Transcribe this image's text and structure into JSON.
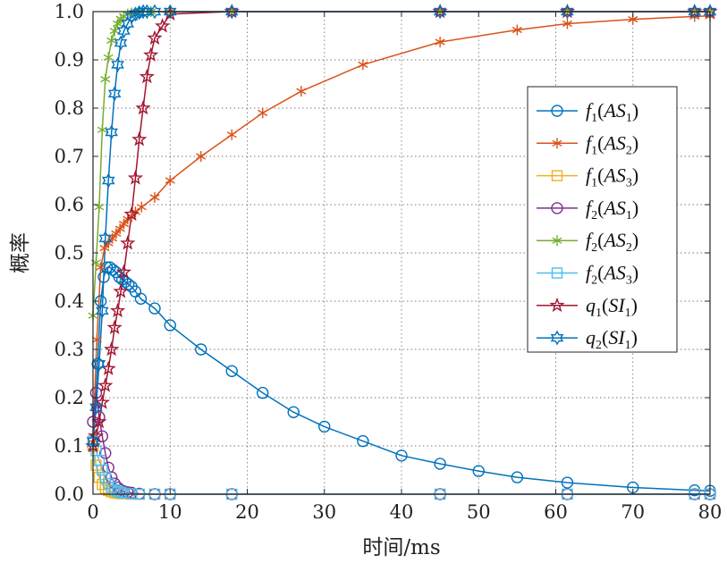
{
  "chart_data": {
    "type": "line",
    "xlabel": "时间/ms",
    "ylabel": "概率",
    "xlim": [
      0,
      80
    ],
    "ylim": [
      0,
      1.0
    ],
    "xticks": [
      "0",
      "10",
      "20",
      "30",
      "40",
      "50",
      "60",
      "70",
      "80"
    ],
    "yticks": [
      "0.0",
      "0.1",
      "0.2",
      "0.3",
      "0.4",
      "0.5",
      "0.6",
      "0.7",
      "0.8",
      "0.9",
      "1.0"
    ],
    "grid": true,
    "legend_position": "right",
    "series": [
      {
        "name": "f1(AS1)",
        "label": {
          "f": "f",
          "sub1": "1",
          "arg": "AS",
          "sub2": "1"
        },
        "color": "#0072bd",
        "marker": "circle",
        "x": [
          0,
          0.6,
          1.0,
          1.4,
          1.8,
          2.2,
          2.6,
          3.0,
          3.4,
          3.8,
          4.2,
          4.6,
          5.0,
          5.5,
          6.2,
          8,
          10,
          14,
          18,
          22,
          26,
          30,
          35,
          40,
          45,
          50,
          55,
          61.5,
          70,
          78,
          80
        ],
        "y": [
          0.1,
          0.27,
          0.4,
          0.45,
          0.47,
          0.47,
          0.465,
          0.46,
          0.45,
          0.445,
          0.44,
          0.435,
          0.43,
          0.42,
          0.405,
          0.385,
          0.35,
          0.3,
          0.255,
          0.21,
          0.17,
          0.14,
          0.11,
          0.08,
          0.063,
          0.048,
          0.035,
          0.024,
          0.014,
          0.008,
          0.007
        ]
      },
      {
        "name": "f1(AS2)",
        "label": {
          "f": "f",
          "sub1": "1",
          "arg": "AS",
          "sub2": "2"
        },
        "color": "#d95319",
        "marker": "asterisk",
        "x": [
          0,
          0.5,
          1.0,
          1.5,
          2.0,
          2.5,
          3.0,
          3.5,
          4.0,
          4.5,
          5.0,
          5.5,
          6.3,
          8,
          10,
          14,
          18,
          22,
          27,
          35,
          45,
          55,
          61.5,
          70,
          78,
          80
        ],
        "y": [
          0.12,
          0.32,
          0.47,
          0.51,
          0.52,
          0.53,
          0.54,
          0.55,
          0.56,
          0.57,
          0.575,
          0.585,
          0.595,
          0.615,
          0.65,
          0.7,
          0.745,
          0.79,
          0.835,
          0.89,
          0.937,
          0.962,
          0.975,
          0.984,
          0.99,
          0.991
        ]
      },
      {
        "name": "f1(AS3)",
        "label": {
          "f": "f",
          "sub1": "1",
          "arg": "AS",
          "sub2": "3"
        },
        "color": "#edb120",
        "marker": "square",
        "x": [
          0,
          0.4,
          0.8,
          1.2,
          1.6,
          2.0,
          2.4,
          2.8,
          3.2,
          3.6,
          4.0,
          5,
          6,
          8,
          10,
          18,
          45,
          61.5,
          78,
          80
        ],
        "y": [
          0.1,
          0.06,
          0.035,
          0.02,
          0.012,
          0.008,
          0.005,
          0.003,
          0.002,
          0.001,
          0.001,
          0.0,
          0.0,
          0.0,
          0.0,
          0.0,
          0.0,
          0.0,
          0.0,
          0.0
        ]
      },
      {
        "name": "f2(AS1)",
        "label": {
          "f": "f",
          "sub1": "2",
          "arg": "AS",
          "sub2": "1"
        },
        "color": "#7e2f8e",
        "marker": "circle",
        "x": [
          0,
          0.4,
          0.8,
          1.2,
          1.6,
          2.0,
          2.4,
          2.8,
          3.2,
          3.6,
          4.0,
          4.5,
          5,
          6,
          8,
          10,
          18,
          45,
          61.5,
          78,
          80
        ],
        "y": [
          0.15,
          0.21,
          0.16,
          0.12,
          0.085,
          0.055,
          0.035,
          0.022,
          0.014,
          0.009,
          0.006,
          0.004,
          0.003,
          0.001,
          0.0,
          0.0,
          0.0,
          0.0,
          0.0,
          0.0,
          0.0
        ]
      },
      {
        "name": "f2(AS2)",
        "label": {
          "f": "f",
          "sub1": "2",
          "arg": "AS",
          "sub2": "2"
        },
        "color": "#77ac30",
        "marker": "asterisk",
        "x": [
          0,
          0.4,
          0.8,
          1.2,
          1.6,
          2.0,
          2.4,
          2.8,
          3.2,
          3.6,
          4.0,
          4.5,
          5.0,
          6.0,
          7.5,
          10,
          18,
          45,
          61.5,
          78,
          80
        ],
        "y": [
          0.37,
          0.48,
          0.595,
          0.755,
          0.86,
          0.905,
          0.94,
          0.96,
          0.975,
          0.985,
          0.99,
          0.995,
          0.997,
          0.999,
          1.0,
          1.0,
          1.0,
          1.0,
          1.0,
          1.0,
          1.0
        ]
      },
      {
        "name": "f2(AS3)",
        "label": {
          "f": "f",
          "sub1": "2",
          "arg": "AS",
          "sub2": "3"
        },
        "color": "#4dbeee",
        "marker": "square",
        "x": [
          0,
          0.4,
          0.8,
          1.2,
          1.6,
          2.0,
          2.4,
          2.8,
          3.2,
          3.6,
          4.0,
          5,
          6,
          8,
          10,
          18,
          45,
          61.5,
          78,
          80
        ],
        "y": [
          0.11,
          0.09,
          0.07,
          0.05,
          0.035,
          0.022,
          0.014,
          0.009,
          0.006,
          0.004,
          0.002,
          0.001,
          0.0,
          0.0,
          0.0,
          0.0,
          0.0,
          0.0,
          0.0,
          0.0
        ]
      },
      {
        "name": "q1(SI1)",
        "label": {
          "f": "q",
          "sub1": "1",
          "arg": "SI",
          "sub2": "1"
        },
        "color": "#a2142f",
        "marker": "star",
        "x": [
          0,
          0.4,
          0.8,
          1.2,
          1.6,
          2.0,
          2.4,
          2.8,
          3.2,
          3.6,
          4.0,
          4.5,
          5.0,
          5.5,
          6.0,
          6.5,
          7.0,
          7.5,
          8.0,
          9.0,
          10,
          18,
          45,
          61.5,
          78,
          80
        ],
        "y": [
          0.1,
          0.12,
          0.15,
          0.19,
          0.225,
          0.26,
          0.3,
          0.345,
          0.38,
          0.42,
          0.46,
          0.52,
          0.58,
          0.655,
          0.735,
          0.8,
          0.865,
          0.91,
          0.945,
          0.97,
          0.995,
          1.0,
          1.0,
          1.0,
          1.0,
          1.0
        ]
      },
      {
        "name": "q2(SI1)",
        "label": {
          "f": "q",
          "sub1": "2",
          "arg": "SI",
          "sub2": "1"
        },
        "color": "#0072bd",
        "marker": "hexagram",
        "x": [
          0,
          0.4,
          0.8,
          1.2,
          1.6,
          2.0,
          2.4,
          2.8,
          3.2,
          3.6,
          4.0,
          4.5,
          5.0,
          5.5,
          6.0,
          6.5,
          7.0,
          8,
          10,
          18,
          45,
          61.5,
          78,
          80
        ],
        "y": [
          0.11,
          0.18,
          0.27,
          0.38,
          0.53,
          0.65,
          0.75,
          0.83,
          0.89,
          0.935,
          0.96,
          0.975,
          0.99,
          0.995,
          0.998,
          1.0,
          1.0,
          1.0,
          1.0,
          1.0,
          1.0,
          1.0,
          1.0,
          1.0
        ]
      }
    ]
  }
}
